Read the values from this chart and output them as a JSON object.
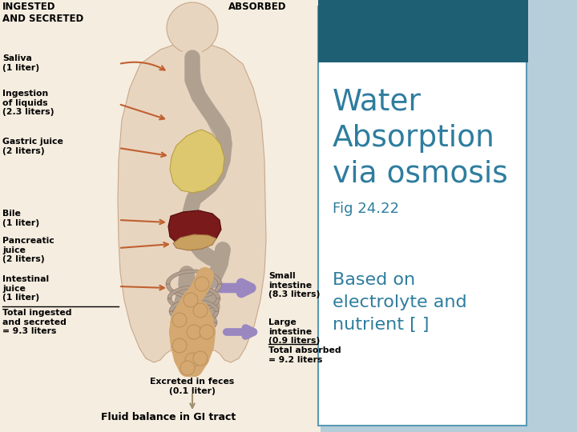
{
  "bg_light_blue": "#b5ced9",
  "header_dark_teal": "#1e5f74",
  "white": "#ffffff",
  "text_teal": "#2e7d9e",
  "border_teal": "#5a9ab5",
  "body_skin": "#e8d5c0",
  "esoph_gray": "#c0b0a8",
  "stomach_yellow": "#ddc870",
  "liver_red": "#7a1a1a",
  "pancreas_tan": "#c8a060",
  "si_gray": "#b0a090",
  "colon_beige": "#d4a870",
  "arrow_brown": "#c06030",
  "arrow_purple": "#9b87c0",
  "arrow_tan": "#c0a878",
  "title_1": "Water",
  "title_2": "Absorption",
  "title_3": "via osmosis",
  "fig_ref": "Fig 24.22",
  "sub_1": "Based on",
  "sub_2": "electrolyte and",
  "sub_3": "nutrient [ ]",
  "lbl_ingested": "INGESTED\nAND SECRETED",
  "lbl_absorbed": "ABSORBED",
  "lbl_saliva": "Saliva\n(1 liter)",
  "lbl_ingestion": "Ingestion\nof liquids\n(2.3 liters)",
  "lbl_gastric": "Gastric juice\n(2 liters)",
  "lbl_bile": "Bile\n(1 liter)",
  "lbl_pancreatic": "Pancreatic\njuice\n(2 liters)",
  "lbl_intestinal": "Intestinal\njuice\n(1 liter)",
  "lbl_total_in": "Total ingested\nand secreted\n= 9.3 liters",
  "lbl_small": "Small\nintestine\n(8.3 liters)",
  "lbl_large": "Large\nintestine\n(0.9 liters)",
  "lbl_total_abs": "Total absorbed\n= 9.2 liters",
  "lbl_excreted": "Excreted in feces\n(0.1 liter)",
  "lbl_fluid": "Fluid balance in GI tract"
}
